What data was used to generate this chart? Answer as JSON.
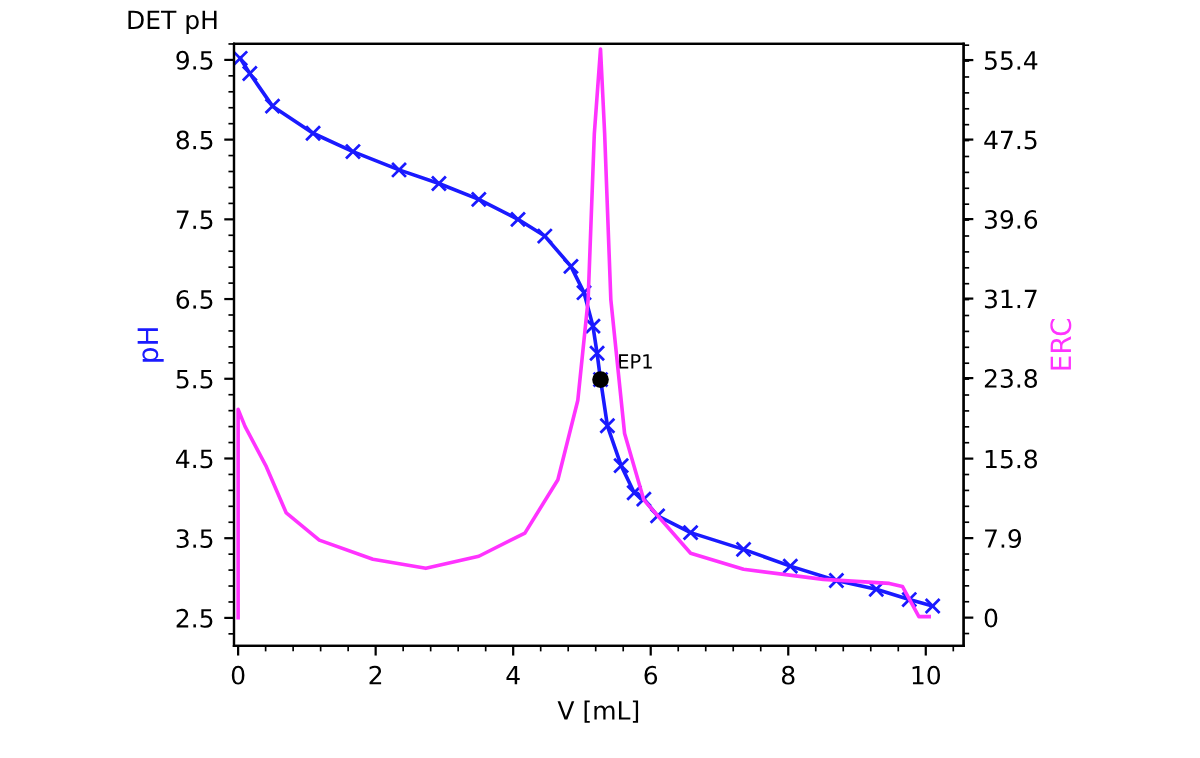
{
  "chart_data": {
    "type": "line",
    "title": "DET pH",
    "xlabel": "V [mL]",
    "ylabel": "pH",
    "y2label": "ERC",
    "xlim": [
      -0.06,
      10.55
    ],
    "xticks": [
      0,
      2,
      4,
      6,
      8,
      10
    ],
    "ylim": [
      2.15,
      9.7
    ],
    "yticks": [
      2.5,
      3.5,
      4.5,
      5.5,
      6.5,
      7.5,
      8.5,
      9.5
    ],
    "y2lim": [
      -2.8,
      57.0
    ],
    "y2ticks": [
      0,
      7.9,
      15.8,
      23.8,
      31.7,
      39.6,
      47.5,
      55.4
    ],
    "grid": false,
    "legend": false,
    "series": [
      {
        "color": "#1a1aff",
        "marker": "cross",
        "x": [
          0.03,
          0.17,
          0.5,
          1.09,
          1.67,
          2.34,
          2.92,
          3.5,
          4.07,
          4.46,
          4.84,
          5.03,
          5.16,
          5.22,
          5.27,
          5.37,
          5.57,
          5.76,
          5.9,
          6.1,
          6.58,
          7.35,
          8.03,
          8.7,
          9.28,
          9.76,
          10.1
        ],
        "values": [
          9.52,
          9.33,
          8.92,
          8.58,
          8.35,
          8.12,
          7.95,
          7.75,
          7.5,
          7.29,
          6.91,
          6.58,
          6.16,
          5.82,
          5.49,
          4.91,
          4.41,
          4.07,
          3.99,
          3.78,
          3.57,
          3.36,
          3.15,
          2.97,
          2.86,
          2.73,
          2.65
        ]
      },
      {
        "axis": "y2",
        "color": "#ff33ff",
        "marker": "none",
        "x": [
          0,
          0,
          0.1,
          0.41,
          0.7,
          1.18,
          1.96,
          2.73,
          3.5,
          4.17,
          4.65,
          4.94,
          5.09,
          5.18,
          5.27,
          5.33,
          5.42,
          5.62,
          5.9,
          6.58,
          7.35,
          8.51,
          9.47,
          9.66,
          9.9,
          10.05
        ],
        "values": [
          0,
          20.7,
          19.0,
          15.0,
          10.4,
          7.7,
          5.8,
          4.9,
          6.1,
          8.4,
          13.7,
          21.6,
          31.6,
          48.1,
          56.5,
          48.1,
          31.6,
          18.3,
          11.7,
          6.4,
          4.8,
          3.8,
          3.4,
          3.1,
          0.1,
          0.1
        ]
      },
      {
        "type": "scatter",
        "color": "#000000",
        "marker": "circle",
        "x": [
          5.27
        ],
        "values": [
          5.49
        ]
      }
    ],
    "annotations": [
      {
        "text": "EP1",
        "x": 5.27,
        "y": 5.49
      }
    ]
  }
}
